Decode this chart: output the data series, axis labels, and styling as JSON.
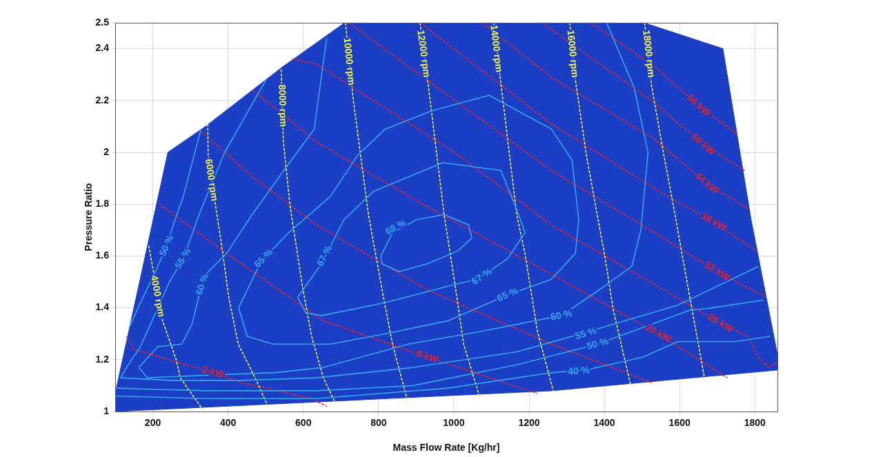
{
  "chart_data": {
    "type": "line",
    "xlabel": "Mass Flow Rate [Kg/hr]",
    "ylabel": "Pressure Ratio",
    "xlim": [
      100,
      1860
    ],
    "ylim": [
      1,
      2.5
    ],
    "xticks": [
      200,
      400,
      600,
      800,
      1000,
      1200,
      1400,
      1600,
      1800
    ],
    "yticks": [
      1,
      1.2,
      1.4,
      1.6,
      1.8,
      2,
      2.2,
      2.4,
      2.5
    ],
    "grid": true,
    "marker": "none",
    "series": [
      {
        "type": "area",
        "color": "#1a3ec4",
        "x": [
          240,
          340,
          545,
          710,
          1505,
          1715,
          1790,
          1860,
          1860,
          1260,
          100,
          100,
          240
        ],
        "values": [
          2.0,
          2.1,
          2.33,
          2.5,
          2.5,
          2.4,
          1.74,
          1.22,
          1.16,
          1.08,
          1.0,
          1.07,
          2.0
        ]
      },
      {
        "color": "#37a6f0",
        "line_style": "solid",
        "x": [
          806,
          809,
          855,
          929,
          1011,
          1048,
          null,
          806,
          837,
          901,
          974,
          1039,
          1048
        ],
        "values": [
          1.6,
          1.57,
          1.54,
          1.57,
          1.62,
          1.67,
          null,
          1.6,
          1.69,
          1.74,
          1.76,
          1.72,
          1.67
        ]
      },
      {
        "color": "#37a6f0",
        "line_style": "solid",
        "x": [
          585,
          607,
          648,
          818,
          1002,
          1062,
          1143,
          1189,
          null,
          585,
          648,
          708,
          787,
          971,
          1125,
          1167,
          1189
        ],
        "values": [
          1.44,
          1.38,
          1.37,
          1.42,
          1.49,
          1.51,
          1.59,
          1.69,
          null,
          1.44,
          1.57,
          1.74,
          1.85,
          1.96,
          1.93,
          1.78,
          1.69
        ]
      },
      {
        "color": "#37a6f0",
        "line_style": "solid",
        "x": [
          428,
          451,
          519,
          672,
          818,
          984,
          1143,
          1259,
          1323,
          1332,
          null,
          428,
          488,
          561,
          672,
          745,
          818,
          941,
          1094,
          1259,
          1314,
          1332
        ],
        "values": [
          1.4,
          1.29,
          1.26,
          1.26,
          1.3,
          1.35,
          1.45,
          1.51,
          1.61,
          1.74,
          null,
          1.4,
          1.58,
          1.69,
          1.83,
          1.99,
          2.09,
          2.16,
          2.22,
          2.09,
          1.97,
          1.74
        ]
      },
      {
        "color": "#37a6f0",
        "line_style": "solid",
        "x": [
          163,
          213,
          277,
          305,
          323,
          341,
          396,
          464,
          543,
          629,
          662,
          null,
          163,
          185,
          341,
          525,
          653,
          879,
          1075,
          1286,
          1387,
          1473,
          1497,
          1516,
          null,
          1406,
          1479,
          1516
        ],
        "values": [
          1.17,
          1.25,
          1.26,
          1.34,
          1.45,
          1.53,
          1.61,
          1.76,
          1.92,
          2.09,
          2.44,
          null,
          1.17,
          1.13,
          1.14,
          1.15,
          1.17,
          1.26,
          1.31,
          1.37,
          1.47,
          1.56,
          1.7,
          2.0,
          null,
          2.5,
          2.25,
          2.0
        ]
      },
      {
        "color": "#37a6f0",
        "line_style": "solid",
        "x": [
          114,
          130,
          167,
          204,
          244,
          281,
          323,
          391,
          501,
          null,
          114,
          250,
          433,
          635,
          892,
          1167,
          1338,
          1595,
          1809
        ],
        "values": [
          1.13,
          1.17,
          1.25,
          1.37,
          1.5,
          1.59,
          1.76,
          2.0,
          2.28,
          null,
          1.13,
          1.12,
          1.12,
          1.13,
          1.17,
          1.23,
          1.3,
          1.41,
          1.56
        ]
      },
      {
        "color": "#37a6f0",
        "line_style": "solid",
        "x": [
          139,
          167,
          204,
          237,
          259,
          281,
          328
        ],
        "values": [
          1.33,
          1.42,
          1.53,
          1.64,
          1.74,
          1.83,
          2.09
        ]
      },
      {
        "color": "#37a6f0",
        "line_style": "solid",
        "x": [
          103,
          341,
          635,
          892,
          1167,
          1382,
          1626,
          1686,
          1824
        ],
        "values": [
          1.09,
          1.08,
          1.08,
          1.1,
          1.18,
          1.26,
          1.39,
          1.4,
          1.43
        ]
      },
      {
        "color": "#37a6f0",
        "line_style": "solid",
        "x": [
          100,
          341,
          635,
          984,
          1259,
          1351,
          1503,
          1595,
          1749,
          1840
        ],
        "values": [
          1.06,
          1.05,
          1.05,
          1.09,
          1.15,
          1.16,
          1.21,
          1.27,
          1.27,
          1.29
        ]
      },
      {
        "color": "#f5f53a",
        "line_style": "dashed",
        "x": [
          189,
          226,
          262,
          273,
          336
        ],
        "values": [
          1.64,
          1.35,
          1.2,
          1.13,
          1.0
        ]
      },
      {
        "color": "#f5f53a",
        "line_style": "dashed",
        "x": [
          346,
          347,
          365,
          382,
          402,
          427,
          475,
          506
        ],
        "values": [
          2.11,
          1.99,
          1.81,
          1.65,
          1.44,
          1.26,
          1.12,
          1.02
        ]
      },
      {
        "color": "#f5f53a",
        "line_style": "dashed",
        "x": [
          541,
          547,
          565,
          598,
          622,
          653,
          686
        ],
        "values": [
          2.32,
          2.04,
          1.79,
          1.48,
          1.29,
          1.13,
          1.03
        ]
      },
      {
        "color": "#f5f53a",
        "line_style": "dashed",
        "x": [
          712,
          732,
          773,
          813,
          837,
          877
        ],
        "values": [
          2.5,
          2.21,
          1.76,
          1.44,
          1.26,
          1.04
        ]
      },
      {
        "color": "#f5f53a",
        "line_style": "dashed",
        "x": [
          910,
          932,
          974,
          1002,
          1026,
          1070
        ],
        "values": [
          2.5,
          2.26,
          1.76,
          1.5,
          1.26,
          1.05
        ]
      },
      {
        "color": "#f5f53a",
        "line_style": "dashed",
        "x": [
          1106,
          1123,
          1167,
          1189,
          1222,
          1264
        ],
        "values": [
          2.5,
          2.29,
          1.76,
          1.61,
          1.31,
          1.08
        ]
      },
      {
        "color": "#f5f53a",
        "line_style": "dashed",
        "x": [
          1308,
          1323,
          1351,
          1382,
          1400,
          1424,
          1470
        ],
        "values": [
          2.5,
          2.28,
          2.0,
          1.75,
          1.61,
          1.39,
          1.1
        ]
      },
      {
        "color": "#f5f53a",
        "line_style": "dashed",
        "x": [
          1507,
          1525,
          1558,
          1589,
          1611,
          1631,
          1666
        ],
        "values": [
          2.5,
          2.26,
          1.99,
          1.75,
          1.57,
          1.41,
          1.13
        ]
      },
      {
        "color": "#e8202a",
        "line_style": "dashed",
        "x": [
          130,
          149,
          360,
          439,
          622,
          662
        ],
        "values": [
          1.29,
          1.24,
          1.15,
          1.11,
          1.05,
          1.02
        ]
      },
      {
        "color": "#e8202a",
        "line_style": "dashed",
        "x": [
          217,
          396,
          653,
          929,
          1222
        ],
        "values": [
          1.8,
          1.61,
          1.35,
          1.21,
          1.07
        ]
      },
      {
        "color": "#e8202a",
        "line_style": "dashed",
        "x": [
          328,
          470,
          635,
          929,
          1259,
          1529
        ],
        "values": [
          2.08,
          1.9,
          1.72,
          1.47,
          1.26,
          1.11
        ]
      },
      {
        "color": "#e8202a",
        "line_style": "dashed",
        "x": [
          466,
          635,
          929,
          1259,
          1543,
          1727
        ],
        "values": [
          2.24,
          2.04,
          1.79,
          1.53,
          1.3,
          1.13
        ]
      },
      {
        "color": "#e8202a",
        "line_style": "dashed",
        "x": [
          571,
          635,
          1002,
          1259,
          1534,
          1708,
          1782,
          1809,
          1837,
          1859
        ],
        "values": [
          2.36,
          2.34,
          2.0,
          1.72,
          1.49,
          1.34,
          1.29,
          1.21,
          1.17,
          1.19
        ]
      },
      {
        "color": "#e8202a",
        "line_style": "dashed",
        "x": [
          721,
          984,
          1259,
          1534,
          1699,
          1831
        ],
        "values": [
          2.5,
          2.22,
          1.93,
          1.69,
          1.54,
          1.44
        ]
      },
      {
        "color": "#e8202a",
        "line_style": "dashed",
        "x": [
          910,
          1259,
          1534,
          1690,
          1804
        ],
        "values": [
          2.5,
          2.11,
          1.86,
          1.73,
          1.62
        ]
      },
      {
        "color": "#e8202a",
        "line_style": "dashed",
        "x": [
          1075,
          1259,
          1534,
          1672,
          1785
        ],
        "values": [
          2.5,
          2.29,
          2.05,
          1.88,
          1.78
        ]
      },
      {
        "color": "#e8202a",
        "line_style": "dashed",
        "x": [
          1235,
          1534,
          1662,
          1773
        ],
        "values": [
          2.5,
          2.19,
          2.03,
          1.93
        ]
      },
      {
        "color": "#e8202a",
        "line_style": "dashed",
        "x": [
          1363,
          1534,
          1650,
          1754
        ],
        "values": [
          2.5,
          2.33,
          2.18,
          2.07
        ]
      }
    ],
    "annotations": [
      {
        "text": "4000 rpm",
        "x": 212,
        "y": 1.445
      },
      {
        "text": "6000 rpm",
        "x": 355,
        "y": 1.893
      },
      {
        "text": "8000 rpm",
        "x": 544,
        "y": 2.18
      },
      {
        "text": "10000 rpm",
        "x": 721,
        "y": 2.35
      },
      {
        "text": "12000 rpm",
        "x": 919,
        "y": 2.38
      },
      {
        "text": "14000 rpm",
        "x": 1112,
        "y": 2.4
      },
      {
        "text": "16000 rpm",
        "x": 1315,
        "y": 2.38
      },
      {
        "text": "18000 rpm",
        "x": 1517,
        "y": 2.38
      },
      {
        "text": "2 kW",
        "x": 360,
        "y": 1.15
      },
      {
        "text": "8 kW",
        "x": 929,
        "y": 1.21
      },
      {
        "text": "20 kW",
        "x": 1543,
        "y": 1.3
      },
      {
        "text": "26 kW",
        "x": 1708,
        "y": 1.34
      },
      {
        "text": "32 kW",
        "x": 1699,
        "y": 1.54
      },
      {
        "text": "38 kW",
        "x": 1690,
        "y": 1.73
      },
      {
        "text": "44 kW",
        "x": 1672,
        "y": 1.88
      },
      {
        "text": "50 kW",
        "x": 1662,
        "y": 2.03
      },
      {
        "text": "56 kW",
        "x": 1650,
        "y": 2.18
      },
      {
        "text": "50 %",
        "x": 237,
        "y": 1.64
      },
      {
        "text": "55 %",
        "x": 281,
        "y": 1.59
      },
      {
        "text": "60 %",
        "x": 332,
        "y": 1.49
      },
      {
        "text": "65 %",
        "x": 495,
        "y": 1.59
      },
      {
        "text": "67 %",
        "x": 657,
        "y": 1.6
      },
      {
        "text": "68 %",
        "x": 846,
        "y": 1.71
      },
      {
        "text": "67 %",
        "x": 1075,
        "y": 1.52
      },
      {
        "text": "65 %",
        "x": 1143,
        "y": 1.45
      },
      {
        "text": "60 %",
        "x": 1286,
        "y": 1.37
      },
      {
        "text": "55 %",
        "x": 1351,
        "y": 1.3
      },
      {
        "text": "50 %",
        "x": 1382,
        "y": 1.26
      },
      {
        "text": "40 %",
        "x": 1332,
        "y": 1.155
      }
    ]
  }
}
